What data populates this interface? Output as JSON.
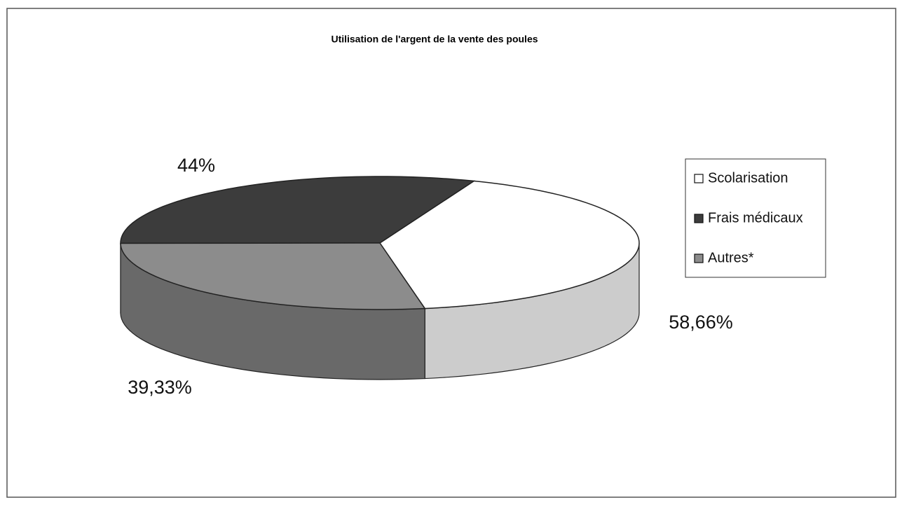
{
  "chart_data": {
    "type": "pie3d",
    "title": "Utilisation de l'argent de la vente des poules",
    "categories": [
      "Scolarisation",
      "Frais médicaux",
      "Autres*"
    ],
    "values": [
      58.66,
      44,
      39.33
    ],
    "value_labels": [
      "58,66%",
      "44%",
      "39,33%"
    ],
    "colors": [
      "#ffffff",
      "#3c3c3c",
      "#8c8c8c"
    ],
    "legend": "right"
  }
}
